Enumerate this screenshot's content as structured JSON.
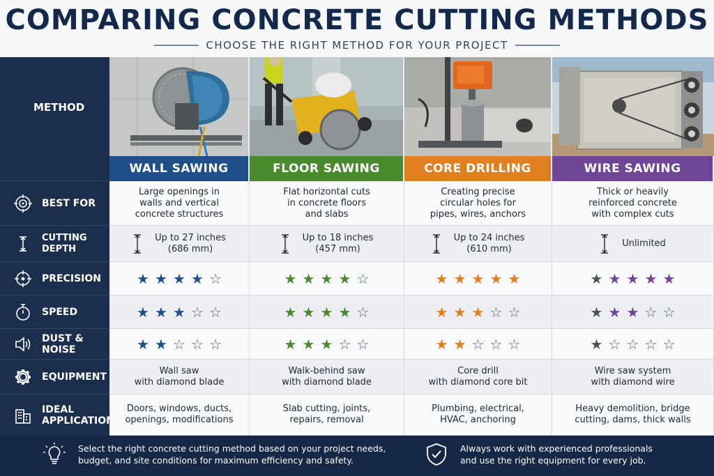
{
  "header": {
    "title": "COMPARING CONCRETE CUTTING METHODS",
    "subtitle": "CHOOSE THE RIGHT METHOD FOR YOUR PROJECT"
  },
  "labels": {
    "method": "METHOD",
    "best_for": "BEST FOR",
    "cutting_depth": "CUTTING DEPTH",
    "precision": "PRECISION",
    "speed": "SPEED",
    "dust_noise": "DUST & NOISE",
    "equipment": "EQUIPMENT",
    "ideal_line1": "IDEAL",
    "ideal_line2": "APPLICATIONS"
  },
  "methods": [
    {
      "name": "WALL SAWING",
      "color": "#1f4f88",
      "photo_icon": "wall-saw-photo",
      "best_for": [
        "Large openings in",
        "walls and vertical",
        "concrete structures"
      ],
      "depth": [
        "Up to 27 inches",
        "(686 mm)"
      ],
      "precision": 4,
      "speed": 3,
      "dust_noise": 2,
      "equipment": [
        "Wall saw",
        "with diamond blade"
      ],
      "applications": [
        "Doors, windows, ducts,",
        "openings, modifications"
      ]
    },
    {
      "name": "FLOOR SAWING",
      "color": "#4a8a2e",
      "photo_icon": "floor-saw-photo",
      "best_for": [
        "Flat horizontal cuts",
        "in concrete floors",
        "and slabs"
      ],
      "depth": [
        "Up to 18 inches",
        "(457 mm)"
      ],
      "precision": 4,
      "speed": 4,
      "dust_noise": 3,
      "equipment": [
        "Walk-behind saw",
        "with diamond blade"
      ],
      "applications": [
        "Slab cutting, joints,",
        "repairs, removal"
      ]
    },
    {
      "name": "CORE DRILLING",
      "color": "#e07f1e",
      "photo_icon": "core-drill-photo",
      "best_for": [
        "Creating precise",
        "circular holes for",
        "pipes, wires, anchors"
      ],
      "depth": [
        "Up to 24 inches",
        "(610 mm)"
      ],
      "precision": 5,
      "speed": 3,
      "dust_noise": 2,
      "equipment": [
        "Core drill",
        "with diamond core bit"
      ],
      "applications": [
        "Plumbing, electrical,",
        "HVAC, anchoring"
      ]
    },
    {
      "name": "WIRE SAWING",
      "color": "#6f4597",
      "photo_icon": "wire-saw-photo",
      "best_for": [
        "Thick or heavily",
        "reinforced concrete",
        "with complex cuts"
      ],
      "depth": [
        "Unlimited",
        ""
      ],
      "precision": 5,
      "speed": 3,
      "dust_noise": 1,
      "equipment": [
        "Wire saw system",
        "with diamond wire"
      ],
      "applications": [
        "Heavy demolition, bridge",
        "cutting, dams, thick walls"
      ]
    }
  ],
  "footer": {
    "left_line1": "Select the right concrete cutting method based on your project needs,",
    "left_line2": "budget, and site conditions for maximum efficiency and safety.",
    "right_line1": "Always work with experienced professionals",
    "right_line2": "and use the right equipment for every job."
  }
}
